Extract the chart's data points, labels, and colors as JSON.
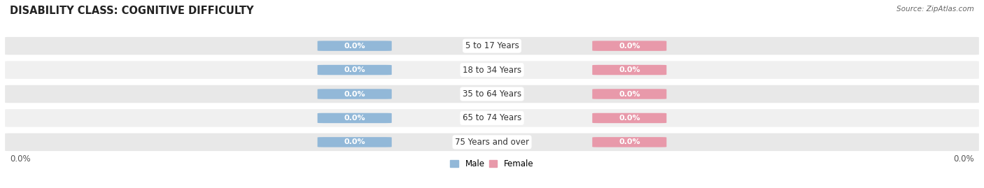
{
  "title": "DISABILITY CLASS: COGNITIVE DIFFICULTY",
  "source": "Source: ZipAtlas.com",
  "categories": [
    "5 to 17 Years",
    "18 to 34 Years",
    "35 to 64 Years",
    "65 to 74 Years",
    "75 Years and over"
  ],
  "male_values": [
    0.0,
    0.0,
    0.0,
    0.0,
    0.0
  ],
  "female_values": [
    0.0,
    0.0,
    0.0,
    0.0,
    0.0
  ],
  "male_color": "#92b8d8",
  "female_color": "#e899aa",
  "bar_bg_color_odd": "#e8e8e8",
  "bar_bg_color_even": "#f0f0f0",
  "fig_bg_color": "#ffffff",
  "title_fontsize": 10.5,
  "label_fontsize": 8,
  "cat_fontsize": 8.5,
  "tick_fontsize": 8.5,
  "x_left_label": "0.0%",
  "x_right_label": "0.0%",
  "pill_label_color": "white",
  "cat_label_color": "#333333",
  "source_color": "#666666"
}
